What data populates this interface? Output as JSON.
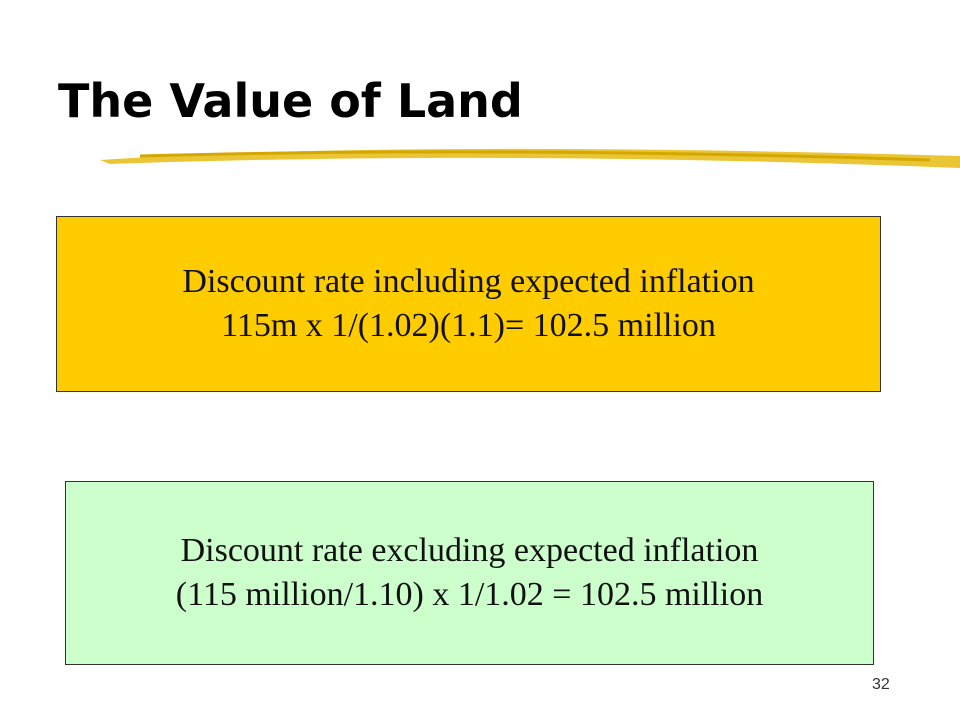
{
  "header": {
    "title": "The Value of Land"
  },
  "boxes": [
    {
      "lines": [
        "Discount rate including expected inflation",
        "115m x 1/(1.02)(1.1)= 102.5 million"
      ]
    },
    {
      "lines": [
        "Discount rate excluding expected inflation",
        "(115 million/1.10) x 1/1.02 = 102.5 million"
      ]
    }
  ],
  "footer": {
    "page_number": "32"
  }
}
